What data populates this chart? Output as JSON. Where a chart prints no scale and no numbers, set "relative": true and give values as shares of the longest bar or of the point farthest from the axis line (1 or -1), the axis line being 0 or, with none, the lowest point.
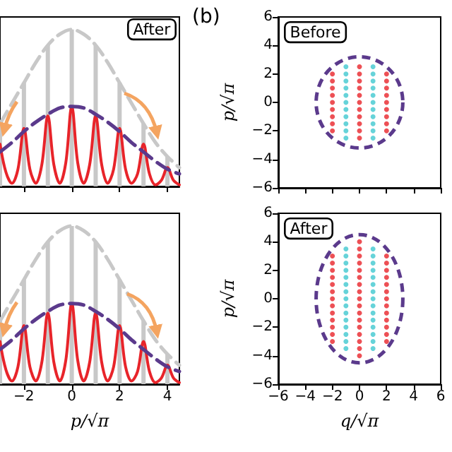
{
  "chart_data": [
    {
      "type": "line",
      "relative": true,
      "xlim": [
        -3,
        4.5
      ],
      "xticks": [
        -2,
        0,
        2,
        4
      ],
      "tick_labels": false,
      "annotations": [
        "After"
      ],
      "series": [
        {
          "type": "bar",
          "color": "#c8c8c8",
          "x": [
            -3,
            -2,
            -1,
            0,
            1,
            2,
            3,
            4
          ],
          "values": [
            0.4,
            0.66,
            0.9,
            1.0,
            0.9,
            0.66,
            0.4,
            0.19
          ]
        },
        {
          "color": "#c8c8c8",
          "line_style": "dashed",
          "marker": "none",
          "x": [
            -3,
            -2.5,
            -2,
            -1.5,
            -1,
            -0.5,
            0,
            0.5,
            1,
            1.5,
            2,
            2.5,
            3,
            3.5,
            4,
            4.5
          ],
          "values": [
            0.4,
            0.53,
            0.66,
            0.79,
            0.9,
            0.97,
            1.0,
            0.97,
            0.9,
            0.79,
            0.66,
            0.53,
            0.4,
            0.28,
            0.19,
            0.12
          ]
        },
        {
          "color": "#e8242a",
          "line_style": "solid",
          "marker": "none",
          "x": [
            -3,
            -2.75,
            -2.5,
            -2.25,
            -2,
            -1.75,
            -1.5,
            -1.25,
            -1,
            -0.75,
            -0.5,
            -0.25,
            0,
            0.25,
            0.5,
            0.75,
            1,
            1.25,
            1.5,
            1.75,
            2,
            2.25,
            2.5,
            2.75,
            3,
            3.25,
            3.5,
            3.75,
            4,
            4.25,
            4.5
          ],
          "values": [
            0.27,
            0.09,
            0.02,
            0.11,
            0.37,
            0.11,
            0.02,
            0.14,
            0.45,
            0.14,
            0.02,
            0.15,
            0.51,
            0.15,
            0.02,
            0.14,
            0.45,
            0.14,
            0.02,
            0.11,
            0.37,
            0.11,
            0.02,
            0.08,
            0.27,
            0.08,
            0.01,
            0.04,
            0.12,
            0.04,
            0.01
          ]
        },
        {
          "color": "#5b3a8c",
          "line_style": "dashed",
          "marker": "none",
          "x": [
            -3,
            -2.5,
            -2,
            -1.5,
            -1,
            -0.5,
            0,
            0.5,
            1,
            1.5,
            2,
            2.5,
            3,
            3.5,
            4,
            4.5
          ],
          "values": [
            0.22,
            0.28,
            0.35,
            0.41,
            0.46,
            0.5,
            0.51,
            0.5,
            0.46,
            0.41,
            0.35,
            0.28,
            0.22,
            0.16,
            0.11,
            0.08
          ]
        }
      ]
    },
    {
      "type": "line",
      "relative": true,
      "xlim": [
        -3,
        4.5
      ],
      "xticks": [
        -2,
        0,
        2,
        4
      ],
      "tick_labels": "x",
      "xlabel": "p/√π",
      "series": [
        {
          "type": "bar",
          "color": "#c8c8c8",
          "x": [
            -3,
            -2,
            -1,
            0,
            1,
            2,
            3,
            4
          ],
          "values": [
            0.4,
            0.66,
            0.9,
            1.0,
            0.9,
            0.66,
            0.4,
            0.19
          ]
        },
        {
          "color": "#c8c8c8",
          "line_style": "dashed",
          "marker": "none",
          "x": [
            -3,
            -2.5,
            -2,
            -1.5,
            -1,
            -0.5,
            0,
            0.5,
            1,
            1.5,
            2,
            2.5,
            3,
            3.5,
            4,
            4.5
          ],
          "values": [
            0.4,
            0.53,
            0.66,
            0.79,
            0.9,
            0.97,
            1.0,
            0.97,
            0.9,
            0.79,
            0.66,
            0.53,
            0.4,
            0.28,
            0.19,
            0.12
          ]
        },
        {
          "color": "#e8242a",
          "line_style": "solid",
          "marker": "none",
          "x": [
            -3,
            -2.75,
            -2.5,
            -2.25,
            -2,
            -1.75,
            -1.5,
            -1.25,
            -1,
            -0.75,
            -0.5,
            -0.25,
            0,
            0.25,
            0.5,
            0.75,
            1,
            1.25,
            1.5,
            1.75,
            2,
            2.25,
            2.5,
            2.75,
            3,
            3.25,
            3.5,
            3.75,
            4,
            4.25,
            4.5
          ],
          "values": [
            0.27,
            0.09,
            0.02,
            0.11,
            0.37,
            0.11,
            0.02,
            0.14,
            0.45,
            0.14,
            0.02,
            0.15,
            0.51,
            0.15,
            0.02,
            0.14,
            0.45,
            0.14,
            0.02,
            0.11,
            0.37,
            0.11,
            0.02,
            0.08,
            0.27,
            0.08,
            0.01,
            0.04,
            0.12,
            0.04,
            0.01
          ]
        },
        {
          "color": "#5b3a8c",
          "line_style": "dashed",
          "marker": "none",
          "x": [
            -3,
            -2.5,
            -2,
            -1.5,
            -1,
            -0.5,
            0,
            0.5,
            1,
            1.5,
            2,
            2.5,
            3,
            3.5,
            4,
            4.5
          ],
          "values": [
            0.22,
            0.28,
            0.35,
            0.41,
            0.46,
            0.5,
            0.51,
            0.5,
            0.46,
            0.41,
            0.35,
            0.28,
            0.22,
            0.16,
            0.11,
            0.08
          ]
        }
      ]
    },
    {
      "type": "scatter",
      "xlim": [
        -6,
        6
      ],
      "xticks": [
        -6,
        -4,
        -2,
        0,
        2,
        4,
        6
      ],
      "ylim": [
        -6,
        6
      ],
      "yticks": [
        -6,
        -4,
        -2,
        0,
        2,
        4,
        6
      ],
      "tick_labels": "y",
      "ylabel": "p/√π",
      "annotations": [
        "(b)",
        "Before"
      ],
      "series": [
        {
          "color": "#e8242a",
          "marker": "circle",
          "x": [
            -2,
            -2,
            -2,
            -2,
            -2,
            -2,
            -2,
            -2,
            -2,
            0,
            0,
            0,
            0,
            0,
            0,
            0,
            0,
            0,
            0,
            0,
            2,
            2,
            2,
            2,
            2,
            2,
            2,
            2,
            2
          ],
          "values": [
            -2,
            -1.5,
            -1,
            -0.5,
            0,
            0.5,
            1,
            1.5,
            2,
            -2.5,
            -2,
            -1.5,
            -1,
            -0.5,
            0,
            0.5,
            1,
            1.5,
            2,
            2.5,
            -2,
            -1.5,
            -1,
            -0.5,
            0,
            0.5,
            1,
            1.5,
            2
          ]
        },
        {
          "color": "#40c8d0",
          "marker": "circle",
          "x": [
            -1,
            -1,
            -1,
            -1,
            -1,
            -1,
            -1,
            -1,
            -1,
            -1,
            -1,
            1,
            1,
            1,
            1,
            1,
            1,
            1,
            1,
            1,
            1,
            1
          ],
          "values": [
            -2.5,
            -2,
            -1.5,
            -1,
            -0.5,
            0,
            0.5,
            1,
            1.5,
            2,
            2.5,
            -2.5,
            -2,
            -1.5,
            -1,
            -0.5,
            0,
            0.5,
            1,
            1.5,
            2,
            2.5
          ]
        }
      ]
    },
    {
      "type": "scatter",
      "xlim": [
        -6,
        6
      ],
      "xticks": [
        -6,
        -4,
        -2,
        0,
        2,
        4,
        6
      ],
      "ylim": [
        -6,
        6
      ],
      "yticks": [
        -6,
        -4,
        -2,
        0,
        2,
        4,
        6
      ],
      "xlabel": "q/√π",
      "ylabel": "p/√π",
      "annotations": [
        "After"
      ],
      "series": [
        {
          "color": "#e8242a",
          "marker": "circle",
          "x": [
            -2,
            -2,
            -2,
            -2,
            -2,
            -2,
            -2,
            -2,
            -2,
            -2,
            -2,
            -2,
            -2,
            0,
            0,
            0,
            0,
            0,
            0,
            0,
            0,
            0,
            0,
            0,
            0,
            0,
            0,
            0,
            0,
            0,
            2,
            2,
            2,
            2,
            2,
            2,
            2,
            2,
            2,
            2,
            2,
            2,
            2
          ],
          "values": [
            -3,
            -2.5,
            -2,
            -1.5,
            -1,
            -0.5,
            0,
            0.5,
            1,
            1.5,
            2,
            2.5,
            3,
            -4,
            -3.5,
            -3,
            -2.5,
            -2,
            -1.5,
            -1,
            -0.5,
            0,
            0.5,
            1,
            1.5,
            2,
            2.5,
            3,
            3.5,
            4,
            -3,
            -2.5,
            -2,
            -1.5,
            -1,
            -0.5,
            0,
            0.5,
            1,
            1.5,
            2,
            2.5,
            3
          ]
        },
        {
          "color": "#40c8d0",
          "marker": "circle",
          "x": [
            -1,
            -1,
            -1,
            -1,
            -1,
            -1,
            -1,
            -1,
            -1,
            -1,
            -1,
            -1,
            -1,
            -1,
            -1,
            1,
            1,
            1,
            1,
            1,
            1,
            1,
            1,
            1,
            1,
            1,
            1,
            1,
            1,
            1
          ],
          "values": [
            -3.5,
            -3,
            -2.5,
            -2,
            -1.5,
            -1,
            -0.5,
            0,
            0.5,
            1,
            1.5,
            2,
            2.5,
            3,
            3.5,
            -3.5,
            -3,
            -2.5,
            -2,
            -1.5,
            -1,
            -0.5,
            0,
            0.5,
            1,
            1.5,
            2,
            2.5,
            3,
            3.5
          ]
        }
      ]
    }
  ]
}
